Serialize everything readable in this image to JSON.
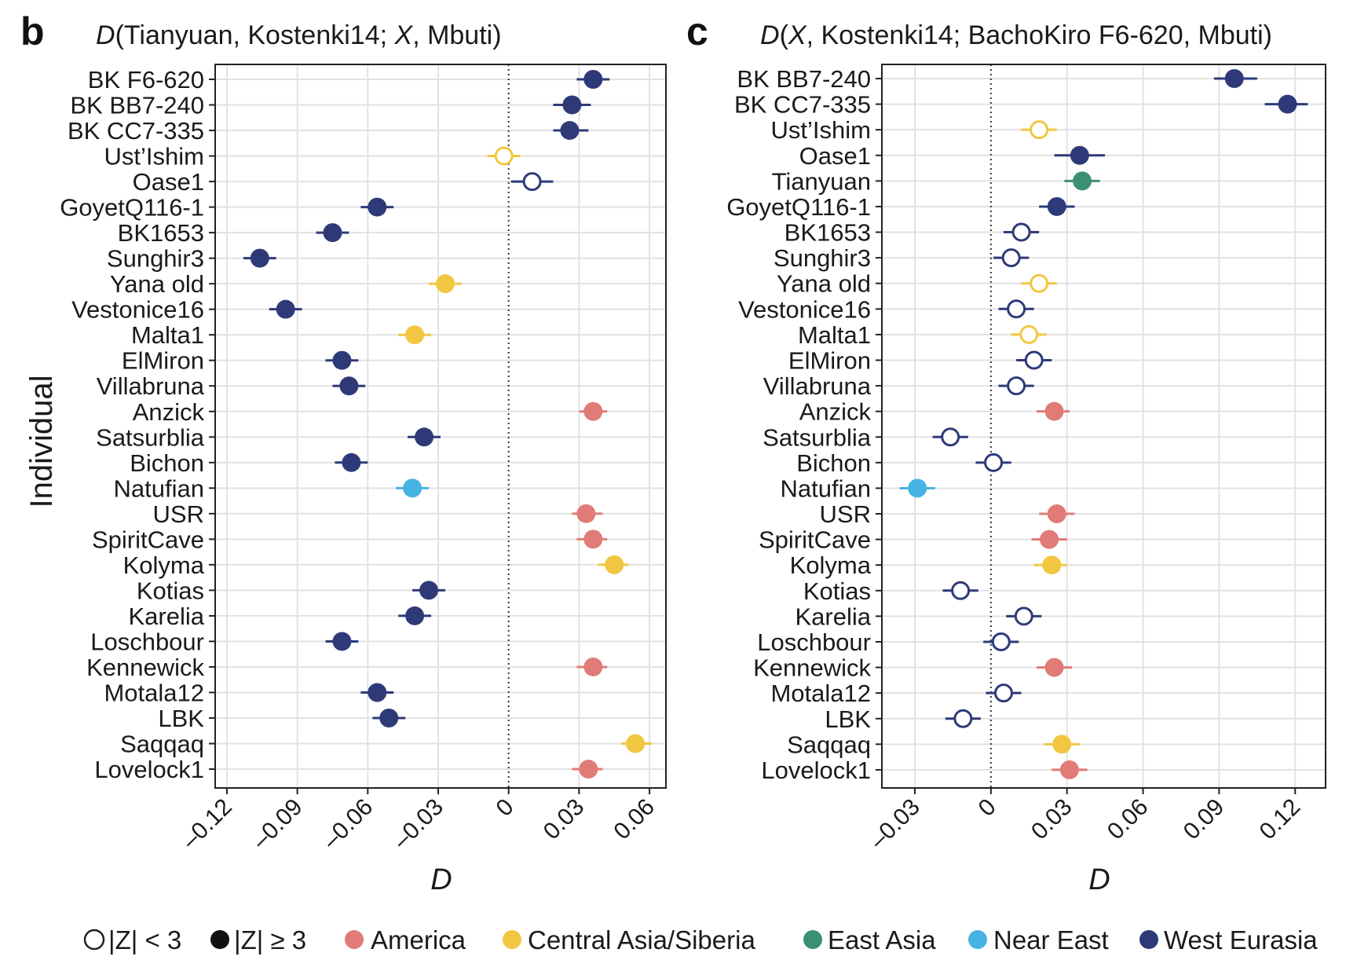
{
  "colors": {
    "America": "#E07B78",
    "Central Asia/Siberia": "#F1C741",
    "East Asia": "#3B8F74",
    "Near East": "#45B4E3",
    "West Eurasia": "#2E3A78"
  },
  "legend": {
    "open_label": "|Z| < 3",
    "filled_label": "|Z| ≥ 3",
    "regions": [
      "America",
      "Central Asia/Siberia",
      "East Asia",
      "Near East",
      "West Eurasia"
    ]
  },
  "chart_data": [
    {
      "type": "scatter",
      "panel_letter": "b",
      "title": "D(Tianyuan, Kostenki14; X, Mbuti)",
      "xlabel": "D",
      "ylabel": "Individual",
      "xlim": [
        -0.125,
        0.067
      ],
      "xticks": [
        -0.12,
        -0.09,
        -0.06,
        -0.03,
        0,
        0.03,
        0.06
      ],
      "xtick_labels": [
        "–0.12",
        "–0.09",
        "–0.06",
        "–0.03",
        "0",
        "0.03",
        "0.06"
      ],
      "reference_line": 0,
      "grid": true,
      "points": [
        {
          "label": "BK F6-620",
          "d": 0.036,
          "lo": 0.029,
          "hi": 0.043,
          "region": "West Eurasia",
          "significant": true
        },
        {
          "label": "BK BB7-240",
          "d": 0.027,
          "lo": 0.019,
          "hi": 0.035,
          "region": "West Eurasia",
          "significant": true
        },
        {
          "label": "BK CC7-335",
          "d": 0.026,
          "lo": 0.019,
          "hi": 0.034,
          "region": "West Eurasia",
          "significant": true
        },
        {
          "label": "Ust’Ishim",
          "d": -0.002,
          "lo": -0.009,
          "hi": 0.005,
          "region": "Central Asia/Siberia",
          "significant": false
        },
        {
          "label": "Oase1",
          "d": 0.01,
          "lo": 0.001,
          "hi": 0.019,
          "region": "West Eurasia",
          "significant": false
        },
        {
          "label": "GoyetQ116-1",
          "d": -0.056,
          "lo": -0.063,
          "hi": -0.049,
          "region": "West Eurasia",
          "significant": true
        },
        {
          "label": "BK1653",
          "d": -0.075,
          "lo": -0.082,
          "hi": -0.068,
          "region": "West Eurasia",
          "significant": true
        },
        {
          "label": "Sunghir3",
          "d": -0.106,
          "lo": -0.113,
          "hi": -0.099,
          "region": "West Eurasia",
          "significant": true
        },
        {
          "label": "Yana old",
          "d": -0.027,
          "lo": -0.034,
          "hi": -0.02,
          "region": "Central Asia/Siberia",
          "significant": true
        },
        {
          "label": "Vestonice16",
          "d": -0.095,
          "lo": -0.102,
          "hi": -0.088,
          "region": "West Eurasia",
          "significant": true
        },
        {
          "label": "Malta1",
          "d": -0.04,
          "lo": -0.047,
          "hi": -0.033,
          "region": "Central Asia/Siberia",
          "significant": true
        },
        {
          "label": "ElMiron",
          "d": -0.071,
          "lo": -0.078,
          "hi": -0.064,
          "region": "West Eurasia",
          "significant": true
        },
        {
          "label": "Villabruna",
          "d": -0.068,
          "lo": -0.075,
          "hi": -0.061,
          "region": "West Eurasia",
          "significant": true
        },
        {
          "label": "Anzick",
          "d": 0.036,
          "lo": 0.03,
          "hi": 0.042,
          "region": "America",
          "significant": true
        },
        {
          "label": "Satsurblia",
          "d": -0.036,
          "lo": -0.043,
          "hi": -0.029,
          "region": "West Eurasia",
          "significant": true
        },
        {
          "label": "Bichon",
          "d": -0.067,
          "lo": -0.074,
          "hi": -0.06,
          "region": "West Eurasia",
          "significant": true
        },
        {
          "label": "Natufian",
          "d": -0.041,
          "lo": -0.048,
          "hi": -0.034,
          "region": "Near East",
          "significant": true
        },
        {
          "label": "USR",
          "d": 0.033,
          "lo": 0.027,
          "hi": 0.04,
          "region": "America",
          "significant": true
        },
        {
          "label": "SpiritCave",
          "d": 0.036,
          "lo": 0.029,
          "hi": 0.042,
          "region": "America",
          "significant": true
        },
        {
          "label": "Kolyma",
          "d": 0.045,
          "lo": 0.038,
          "hi": 0.051,
          "region": "Central Asia/Siberia",
          "significant": true
        },
        {
          "label": "Kotias",
          "d": -0.034,
          "lo": -0.041,
          "hi": -0.027,
          "region": "West Eurasia",
          "significant": true
        },
        {
          "label": "Karelia",
          "d": -0.04,
          "lo": -0.047,
          "hi": -0.033,
          "region": "West Eurasia",
          "significant": true
        },
        {
          "label": "Loschbour",
          "d": -0.071,
          "lo": -0.078,
          "hi": -0.064,
          "region": "West Eurasia",
          "significant": true
        },
        {
          "label": "Kennewick",
          "d": 0.036,
          "lo": 0.029,
          "hi": 0.042,
          "region": "America",
          "significant": true
        },
        {
          "label": "Motala12",
          "d": -0.056,
          "lo": -0.063,
          "hi": -0.049,
          "region": "West Eurasia",
          "significant": true
        },
        {
          "label": "LBK",
          "d": -0.051,
          "lo": -0.058,
          "hi": -0.044,
          "region": "West Eurasia",
          "significant": true
        },
        {
          "label": "Saqqaq",
          "d": 0.054,
          "lo": 0.048,
          "hi": 0.061,
          "region": "Central Asia/Siberia",
          "significant": true
        },
        {
          "label": "Lovelock1",
          "d": 0.034,
          "lo": 0.027,
          "hi": 0.04,
          "region": "America",
          "significant": true
        }
      ]
    },
    {
      "type": "scatter",
      "panel_letter": "c",
      "title": "D(X, Kostenki14; BachoKiro F6-620, Mbuti)",
      "xlabel": "D",
      "ylabel": "",
      "xlim": [
        -0.043,
        0.132
      ],
      "xticks": [
        -0.03,
        0,
        0.03,
        0.06,
        0.09,
        0.12
      ],
      "xtick_labels": [
        "–0.03",
        "0",
        "0.03",
        "0.06",
        "0.09",
        "0.12"
      ],
      "reference_line": 0,
      "grid": true,
      "points": [
        {
          "label": "BK BB7-240",
          "d": 0.096,
          "lo": 0.088,
          "hi": 0.105,
          "region": "West Eurasia",
          "significant": true
        },
        {
          "label": "BK CC7-335",
          "d": 0.117,
          "lo": 0.108,
          "hi": 0.125,
          "region": "West Eurasia",
          "significant": true
        },
        {
          "label": "Ust’Ishim",
          "d": 0.019,
          "lo": 0.012,
          "hi": 0.026,
          "region": "Central Asia/Siberia",
          "significant": false
        },
        {
          "label": "Oase1",
          "d": 0.035,
          "lo": 0.025,
          "hi": 0.045,
          "region": "West Eurasia",
          "significant": true
        },
        {
          "label": "Tianyuan",
          "d": 0.036,
          "lo": 0.029,
          "hi": 0.043,
          "region": "East Asia",
          "significant": true
        },
        {
          "label": "GoyetQ116-1",
          "d": 0.026,
          "lo": 0.019,
          "hi": 0.033,
          "region": "West Eurasia",
          "significant": true
        },
        {
          "label": "BK1653",
          "d": 0.012,
          "lo": 0.005,
          "hi": 0.019,
          "region": "West Eurasia",
          "significant": false
        },
        {
          "label": "Sunghir3",
          "d": 0.008,
          "lo": 0.001,
          "hi": 0.015,
          "region": "West Eurasia",
          "significant": false
        },
        {
          "label": "Yana old",
          "d": 0.019,
          "lo": 0.012,
          "hi": 0.026,
          "region": "Central Asia/Siberia",
          "significant": false
        },
        {
          "label": "Vestonice16",
          "d": 0.01,
          "lo": 0.003,
          "hi": 0.017,
          "region": "West Eurasia",
          "significant": false
        },
        {
          "label": "Malta1",
          "d": 0.015,
          "lo": 0.008,
          "hi": 0.022,
          "region": "Central Asia/Siberia",
          "significant": false
        },
        {
          "label": "ElMiron",
          "d": 0.017,
          "lo": 0.01,
          "hi": 0.024,
          "region": "West Eurasia",
          "significant": false
        },
        {
          "label": "Villabruna",
          "d": 0.01,
          "lo": 0.003,
          "hi": 0.017,
          "region": "West Eurasia",
          "significant": false
        },
        {
          "label": "Anzick",
          "d": 0.025,
          "lo": 0.018,
          "hi": 0.031,
          "region": "America",
          "significant": true
        },
        {
          "label": "Satsurblia",
          "d": -0.016,
          "lo": -0.023,
          "hi": -0.009,
          "region": "West Eurasia",
          "significant": false
        },
        {
          "label": "Bichon",
          "d": 0.001,
          "lo": -0.006,
          "hi": 0.008,
          "region": "West Eurasia",
          "significant": false
        },
        {
          "label": "Natufian",
          "d": -0.029,
          "lo": -0.036,
          "hi": -0.022,
          "region": "Near East",
          "significant": true
        },
        {
          "label": "USR",
          "d": 0.026,
          "lo": 0.019,
          "hi": 0.033,
          "region": "America",
          "significant": true
        },
        {
          "label": "SpiritCave",
          "d": 0.023,
          "lo": 0.016,
          "hi": 0.03,
          "region": "America",
          "significant": true
        },
        {
          "label": "Kolyma",
          "d": 0.024,
          "lo": 0.017,
          "hi": 0.03,
          "region": "Central Asia/Siberia",
          "significant": true
        },
        {
          "label": "Kotias",
          "d": -0.012,
          "lo": -0.019,
          "hi": -0.005,
          "region": "West Eurasia",
          "significant": false
        },
        {
          "label": "Karelia",
          "d": 0.013,
          "lo": 0.006,
          "hi": 0.02,
          "region": "West Eurasia",
          "significant": false
        },
        {
          "label": "Loschbour",
          "d": 0.004,
          "lo": -0.003,
          "hi": 0.011,
          "region": "West Eurasia",
          "significant": false
        },
        {
          "label": "Kennewick",
          "d": 0.025,
          "lo": 0.018,
          "hi": 0.032,
          "region": "America",
          "significant": true
        },
        {
          "label": "Motala12",
          "d": 0.005,
          "lo": -0.002,
          "hi": 0.012,
          "region": "West Eurasia",
          "significant": false
        },
        {
          "label": "LBK",
          "d": -0.011,
          "lo": -0.018,
          "hi": -0.004,
          "region": "West Eurasia",
          "significant": false
        },
        {
          "label": "Saqqaq",
          "d": 0.028,
          "lo": 0.021,
          "hi": 0.035,
          "region": "Central Asia/Siberia",
          "significant": true
        },
        {
          "label": "Lovelock1",
          "d": 0.031,
          "lo": 0.024,
          "hi": 0.038,
          "region": "America",
          "significant": true
        }
      ]
    }
  ]
}
